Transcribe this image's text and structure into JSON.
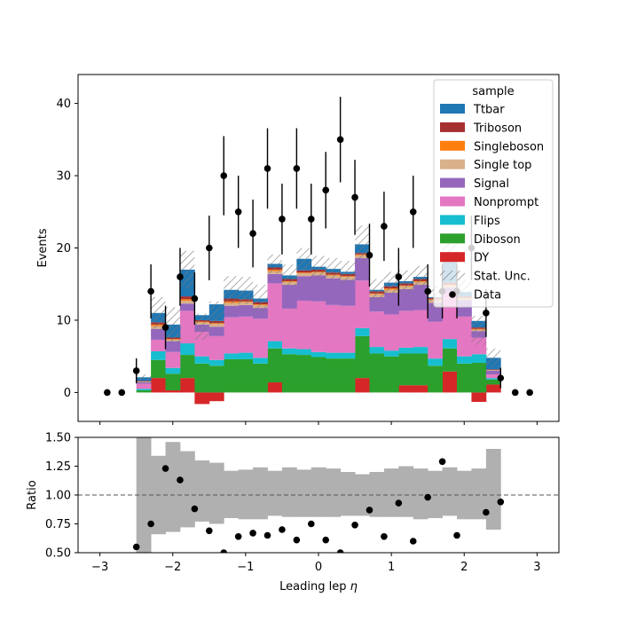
{
  "chart_data": [
    {
      "type": "bar",
      "subtype": "stacked-histogram",
      "xlim": [
        -3.3,
        3.3
      ],
      "ylim": [
        -4,
        44
      ],
      "ylabel": "Events",
      "yticks": [
        0,
        10,
        20,
        30,
        40
      ],
      "bin_edges": [
        -2.5,
        -2.3,
        -2.1,
        -1.9,
        -1.7,
        -1.5,
        -1.3,
        -1.1,
        -0.9,
        -0.7,
        -0.5,
        -0.3,
        -0.1,
        0.1,
        0.3,
        0.5,
        0.7,
        0.9,
        1.1,
        1.3,
        1.5,
        1.7,
        1.9,
        2.1,
        2.3,
        2.5
      ],
      "series": [
        {
          "name": "DY",
          "color": "#d62728",
          "values": [
            0,
            2.0,
            0.3,
            2.0,
            -1.6,
            -1.2,
            0,
            0,
            0,
            1.4,
            0,
            0,
            0,
            0,
            0,
            2.0,
            0,
            0,
            1.0,
            1.0,
            0,
            2.9,
            0,
            -1.3,
            1.1
          ]
        },
        {
          "name": "Diboson",
          "color": "#2ca02c",
          "values": [
            0.3,
            2.5,
            2.3,
            3.2,
            4.0,
            3.7,
            4.6,
            4.6,
            4.0,
            4.7,
            5.3,
            5.2,
            4.9,
            4.7,
            4.7,
            5.8,
            5.4,
            5.0,
            4.4,
            4.4,
            3.7,
            3.2,
            4.0,
            4.1,
            0.7
          ]
        },
        {
          "name": "Flips",
          "color": "#17becf",
          "values": [
            0.2,
            1.2,
            0.8,
            1.6,
            1.0,
            0.8,
            0.8,
            0.9,
            0.8,
            1.0,
            0.8,
            0.8,
            0.7,
            0.8,
            0.8,
            1.1,
            0.9,
            0.8,
            0.8,
            0.9,
            1.0,
            1.3,
            1.0,
            1.2,
            0.2
          ]
        },
        {
          "name": "Nonprompt",
          "color": "#e377c2",
          "values": [
            0.7,
            1.6,
            2.2,
            4.5,
            3.4,
            3.3,
            5.0,
            5.0,
            5.4,
            8.0,
            5.5,
            6.7,
            7.0,
            6.6,
            6.5,
            6.6,
            4.9,
            5.0,
            5.1,
            5.1,
            5.1,
            6.6,
            5.5,
            2.3,
            0.5
          ]
        },
        {
          "name": "Signal",
          "color": "#9467bd",
          "values": [
            0.2,
            1.5,
            1.5,
            1.0,
            1.0,
            1.3,
            1.6,
            1.6,
            1.5,
            1.3,
            3.3,
            3.4,
            3.6,
            3.7,
            3.6,
            3.1,
            2.0,
            3.0,
            3.0,
            3.5,
            2.6,
            0.5,
            2.3,
            0.9,
            0.5
          ]
        },
        {
          "name": "Single top",
          "color": "#d8b08a",
          "values": [
            0.1,
            0.4,
            0.2,
            0.4,
            0.3,
            0.4,
            0.4,
            0.4,
            0.4,
            0.4,
            0.4,
            0.4,
            0.4,
            0.4,
            0.4,
            0.4,
            0.4,
            0.4,
            0.4,
            0.4,
            0.4,
            0.3,
            0.2,
            0.2,
            0.1
          ]
        },
        {
          "name": "Singleboson",
          "color": "#ff7f0e",
          "values": [
            0,
            0.2,
            0.1,
            0.2,
            0.1,
            0.1,
            0.2,
            0.1,
            0.1,
            0.2,
            0.1,
            0.1,
            0.1,
            0.1,
            0.1,
            0.1,
            0.1,
            0.2,
            0.1,
            0.1,
            0.1,
            0.1,
            0.1,
            0.1,
            0
          ]
        },
        {
          "name": "Triboson",
          "color": "#a6302f",
          "values": [
            0.1,
            0.3,
            0.2,
            0.4,
            0.2,
            0.3,
            0.4,
            0.3,
            0.3,
            0.3,
            0.3,
            0.3,
            0.3,
            0.3,
            0.3,
            0.2,
            0.3,
            0.3,
            0.3,
            0.3,
            0.2,
            0.3,
            0.2,
            0.2,
            0.1
          ]
        },
        {
          "name": "Ttbar",
          "color": "#1f77b4",
          "values": [
            0.5,
            1.3,
            1.8,
            3.7,
            0.7,
            2.3,
            1.2,
            1.2,
            0.5,
            0.5,
            0.5,
            1.6,
            0.4,
            0.5,
            0.3,
            1.2,
            0.2,
            0.5,
            0.3,
            0.3,
            0.1,
            4.2,
            0.6,
            0.9,
            1.6
          ]
        }
      ],
      "stat_unc": [
        0.4,
        2.2,
        2.4,
        2.6,
        1.8,
        1.6,
        1.9,
        1.9,
        1.9,
        1.3,
        1.5,
        1.5,
        1.5,
        1.5,
        1.5,
        2.6,
        1.5,
        1.5,
        1.5,
        1.5,
        1.6,
        2.6,
        1.7,
        2.0,
        1.3
      ],
      "stat_unc_label": "Stat. Unc.",
      "data": {
        "name": "Data",
        "x": [
          -2.9,
          -2.7,
          -2.5,
          -2.3,
          -2.1,
          -1.9,
          -1.7,
          -1.5,
          -1.3,
          -1.1,
          -0.9,
          -0.7,
          -0.5,
          -0.3,
          -0.1,
          0.1,
          0.3,
          0.5,
          0.7,
          0.9,
          1.1,
          1.3,
          1.5,
          1.7,
          1.9,
          2.1,
          2.3,
          2.5,
          2.7,
          2.9
        ],
        "y": [
          0,
          0,
          3,
          14,
          9,
          16,
          13,
          20,
          30,
          25,
          22,
          31,
          24,
          31,
          24,
          28,
          35,
          27,
          19,
          23,
          16,
          25,
          14,
          14,
          14,
          20,
          11,
          2,
          0,
          0
        ]
      },
      "legend": {
        "title": "sample",
        "placement": "top-right",
        "entries": [
          "Ttbar",
          "Triboson",
          "Singleboson",
          "Single top",
          "Signal",
          "Nonprompt",
          "Flips",
          "Diboson",
          "DY",
          "Stat. Unc.",
          "Data"
        ]
      }
    },
    {
      "type": "scatter",
      "subtype": "ratio",
      "xlim": [
        -3.3,
        3.3
      ],
      "ylim": [
        0.5,
        1.5
      ],
      "xlabel_prefix": "Leading lep ",
      "xlabel_symbol": "η",
      "ylabel": "Ratio",
      "xticks": [
        -3,
        -2,
        -1,
        0,
        1,
        2,
        3
      ],
      "xtick_labels": [
        "−3",
        "−2",
        "−1",
        "0",
        "1",
        "2",
        "3"
      ],
      "yticks": [
        0.5,
        0.75,
        1.0,
        1.25,
        1.5
      ],
      "ytick_labels": [
        "0.50",
        "0.75",
        "1.00",
        "1.25",
        "1.50"
      ],
      "unc_band": [
        [
          0.45,
          1.55
        ],
        [
          0.66,
          1.34
        ],
        [
          0.68,
          1.46
        ],
        [
          0.72,
          1.38
        ],
        [
          0.77,
          1.3
        ],
        [
          0.75,
          1.28
        ],
        [
          0.8,
          1.21
        ],
        [
          0.79,
          1.22
        ],
        [
          0.79,
          1.24
        ],
        [
          0.82,
          1.21
        ],
        [
          0.81,
          1.24
        ],
        [
          0.81,
          1.22
        ],
        [
          0.81,
          1.24
        ],
        [
          0.81,
          1.23
        ],
        [
          0.82,
          1.2
        ],
        [
          0.82,
          1.18
        ],
        [
          0.81,
          1.2
        ],
        [
          0.81,
          1.23
        ],
        [
          0.81,
          1.25
        ],
        [
          0.79,
          1.23
        ],
        [
          0.8,
          1.21
        ],
        [
          0.82,
          1.24
        ],
        [
          0.79,
          1.21
        ],
        [
          0.79,
          1.23
        ],
        [
          0.7,
          1.4
        ]
      ],
      "ratio_points": {
        "x": [
          -2.5,
          -2.3,
          -2.1,
          -1.9,
          -1.7,
          -1.5,
          -1.3,
          -1.1,
          -0.9,
          -0.7,
          -0.5,
          -0.3,
          -0.1,
          0.1,
          0.3,
          0.5,
          0.7,
          0.9,
          1.1,
          1.3,
          1.5,
          1.7,
          1.9,
          2.3,
          2.5
        ],
        "y": [
          0.55,
          0.75,
          1.23,
          1.13,
          0.88,
          0.69,
          0.5,
          0.64,
          0.67,
          0.65,
          0.7,
          0.61,
          0.75,
          0.61,
          0.5,
          0.74,
          0.87,
          0.64,
          0.93,
          0.6,
          0.98,
          1.29,
          0.65,
          0.85,
          0.94
        ]
      },
      "reference_line": 1.0
    }
  ]
}
